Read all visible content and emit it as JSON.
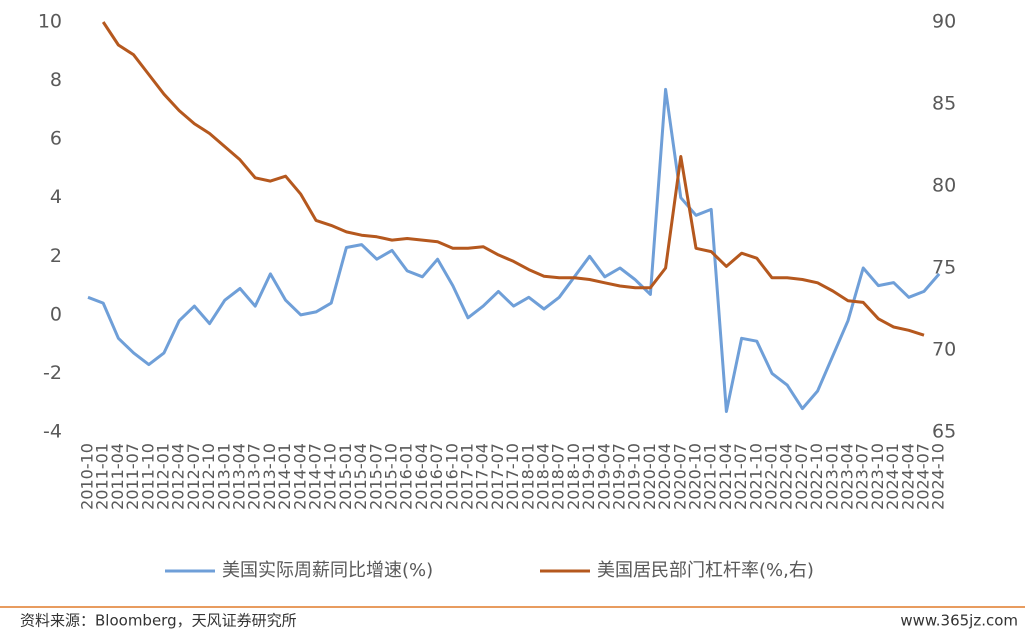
{
  "chart_data": {
    "type": "line",
    "categories": [
      "2010-10",
      "2011-01",
      "2011-04",
      "2011-07",
      "2011-10",
      "2012-01",
      "2012-04",
      "2012-07",
      "2012-10",
      "2013-01",
      "2013-04",
      "2013-07",
      "2013-10",
      "2014-01",
      "2014-04",
      "2014-07",
      "2014-10",
      "2015-01",
      "2015-04",
      "2015-07",
      "2015-10",
      "2016-01",
      "2016-04",
      "2016-07",
      "2016-10",
      "2017-01",
      "2017-04",
      "2017-07",
      "2017-10",
      "2018-01",
      "2018-04",
      "2018-07",
      "2018-10",
      "2019-01",
      "2019-04",
      "2019-07",
      "2019-10",
      "2020-01",
      "2020-04",
      "2020-07",
      "2020-10",
      "2021-01",
      "2021-04",
      "2021-07",
      "2021-10",
      "2022-01",
      "2022-04",
      "2022-07",
      "2022-10",
      "2023-01",
      "2023-04",
      "2023-07",
      "2023-10",
      "2024-01",
      "2024-04",
      "2024-07",
      "2024-10"
    ],
    "series": [
      {
        "name": "美国实际周薪同比增速(%)",
        "color": "#6f9fd8",
        "axis": "y",
        "values": [
          0.6,
          0.4,
          -0.8,
          -1.3,
          -1.7,
          -1.3,
          -0.2,
          0.3,
          -0.3,
          0.5,
          0.9,
          0.3,
          1.4,
          0.5,
          0.0,
          0.1,
          0.4,
          2.3,
          2.4,
          1.9,
          2.2,
          1.5,
          1.3,
          1.9,
          1.0,
          -0.1,
          0.3,
          0.8,
          0.3,
          0.6,
          0.2,
          0.6,
          1.3,
          2.0,
          1.3,
          1.6,
          1.2,
          0.7,
          7.7,
          4.0,
          3.4,
          3.6,
          -3.3,
          -0.8,
          -0.9,
          -2.0,
          -2.4,
          -3.2,
          -2.6,
          -1.4,
          -0.2,
          1.6,
          1.0,
          1.1,
          0.6,
          0.8,
          1.4
        ]
      },
      {
        "name": "美国居民部门杠杆率(%,右)",
        "color": "#b5581e",
        "axis": "y2",
        "values": [
          null,
          90.0,
          88.6,
          88.0,
          86.8,
          85.6,
          84.6,
          83.8,
          83.2,
          82.4,
          81.6,
          80.5,
          80.3,
          80.6,
          79.5,
          77.9,
          77.6,
          77.2,
          77.0,
          76.9,
          76.7,
          76.8,
          76.7,
          76.6,
          76.2,
          76.2,
          76.3,
          75.8,
          75.4,
          74.9,
          74.5,
          74.4,
          74.4,
          74.3,
          74.1,
          73.9,
          73.8,
          73.8,
          75.0,
          81.8,
          76.2,
          76.0,
          75.1,
          75.9,
          75.6,
          74.4,
          74.4,
          74.3,
          74.1,
          73.6,
          73.0,
          72.9,
          71.9,
          71.4,
          71.2,
          70.9,
          null
        ]
      }
    ],
    "ylim": [
      -4,
      10
    ],
    "yticks": [
      -4,
      -2,
      0,
      2,
      4,
      6,
      8,
      10
    ],
    "y2lim": [
      65,
      90
    ],
    "y2ticks": [
      65,
      70,
      75,
      80,
      85,
      90
    ],
    "grid": false,
    "source": "资料来源：Bloomberg，天风证券研究所",
    "watermark": "www.365jz.com"
  }
}
